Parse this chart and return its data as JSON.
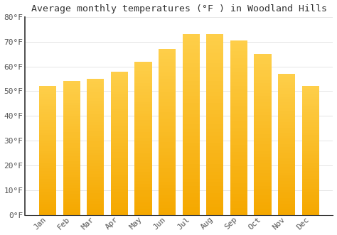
{
  "title": "Average monthly temperatures (°F ) in Woodland Hills",
  "months": [
    "Jan",
    "Feb",
    "Mar",
    "Apr",
    "May",
    "Jun",
    "Jul",
    "Aug",
    "Sep",
    "Oct",
    "Nov",
    "Dec"
  ],
  "values": [
    52,
    54,
    55,
    58,
    62,
    67,
    73,
    73,
    70.5,
    65,
    57,
    52
  ],
  "bar_color_top": "#FECF4A",
  "bar_color_bottom": "#F5A800",
  "background_color": "#FFFFFF",
  "plot_bg_color": "#FFFFFF",
  "ylim": [
    0,
    80
  ],
  "yticks": [
    0,
    10,
    20,
    30,
    40,
    50,
    60,
    70,
    80
  ],
  "ytick_labels": [
    "0°F",
    "10°F",
    "20°F",
    "30°F",
    "40°F",
    "50°F",
    "60°F",
    "70°F",
    "80°F"
  ],
  "title_fontsize": 9.5,
  "tick_fontsize": 8,
  "grid_color": "#E0E0E0",
  "spine_color": "#333333",
  "text_color": "#555555"
}
